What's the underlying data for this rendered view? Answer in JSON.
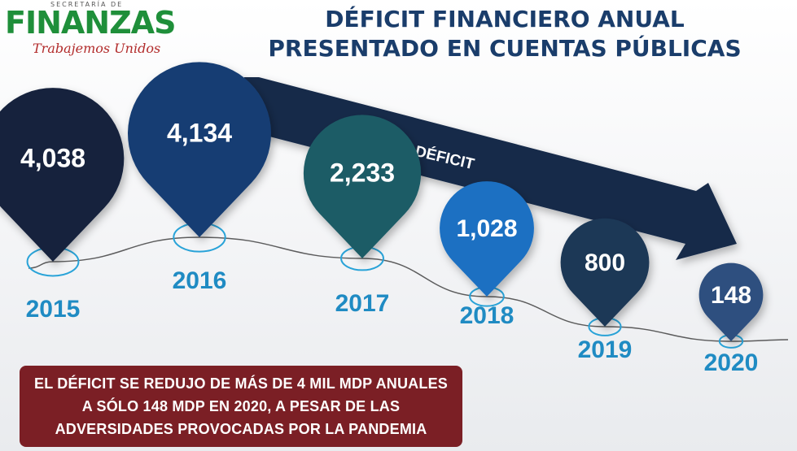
{
  "logo": {
    "top_line": "SECRETARÍA DE",
    "brand": "FINANZAS",
    "slogan": "Trabajemos Unidos"
  },
  "title": "DÉFICIT FINANCIERO ANUAL PRESENTADO EN CUENTAS PÚBLICAS",
  "arrow_label": "DÉFICIT",
  "note": "EL DÉFICIT SE REDUJO DE MÁS DE 4 MIL MDP ANUALES A SÓLO 148 MDP EN 2020, A PESAR DE LAS ADVERSIDADES PROVOCADAS POR LA PANDEMIA",
  "colors": {
    "title": "#1a3d6b",
    "year_label": "#1f8bc3",
    "note_bg": "#7b1f25",
    "ring": "#29a3d8",
    "arrow": "#13294a"
  },
  "chart_data": {
    "type": "bubble-timeline",
    "categories": [
      "2015",
      "2016",
      "2017",
      "2018",
      "2019",
      "2020"
    ],
    "values": [
      4038,
      4134,
      2233,
      1028,
      800,
      148
    ],
    "value_labels": [
      "4,038",
      "4,134",
      "2,233",
      "1,028",
      "800",
      "148"
    ],
    "marker_colors": [
      "#14243e",
      "#163e73",
      "#1f5b66",
      "#1a6fc2",
      "#1f3756",
      "#2f4f7f"
    ]
  }
}
